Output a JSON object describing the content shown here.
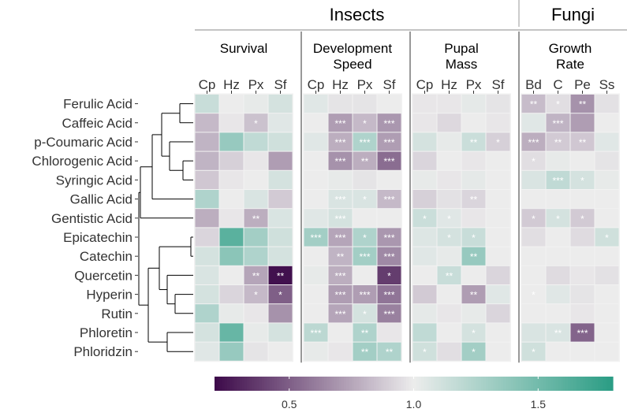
{
  "chart_data": {
    "type": "heatmap",
    "groups": [
      {
        "label": "Insects",
        "panels": [
          0,
          1,
          2
        ]
      },
      {
        "label": "Fungi",
        "panels": [
          3
        ]
      }
    ],
    "panels": [
      {
        "title_lines": [
          "Survival"
        ],
        "columns": [
          "Cp",
          "Hz",
          "Px",
          "Sf"
        ]
      },
      {
        "title_lines": [
          "Development",
          "Speed"
        ],
        "columns": [
          "Cp",
          "Hz",
          "Px",
          "Sf"
        ]
      },
      {
        "title_lines": [
          "Pupal",
          "Mass"
        ],
        "columns": [
          "Cp",
          "Hz",
          "Px",
          "Sf"
        ]
      },
      {
        "title_lines": [
          "Growth",
          "Rate"
        ],
        "columns": [
          "Bd",
          "C",
          "Pe",
          "Ss"
        ]
      }
    ],
    "rows": [
      "Ferulic Acid",
      "Caffeic Acid",
      "p-Coumaric Acid",
      "Chlorogenic Acid",
      "Syringic Acid",
      "Gallic Acid",
      "Gentistic Acid",
      "Epicatechin",
      "Catechin",
      "Quercetin",
      "Hyperin",
      "Rutin",
      "Phloretin",
      "Phloridzin"
    ],
    "values": [
      [
        [
          1.15,
          1.0,
          1.02,
          1.1
        ],
        [
          1.05,
          0.97,
          0.97,
          1.0
        ],
        [
          0.98,
          0.98,
          1.03,
          0.97
        ],
        [
          0.83,
          0.95,
          0.68,
          0.96
        ]
      ],
      [
        [
          0.82,
          0.98,
          0.85,
          1.05
        ],
        [
          1.0,
          0.72,
          0.82,
          0.7
        ],
        [
          0.98,
          0.93,
          1.0,
          0.98
        ],
        [
          1.05,
          0.8,
          0.72,
          1.0
        ]
      ],
      [
        [
          0.8,
          1.35,
          1.18,
          1.12
        ],
        [
          1.05,
          0.78,
          1.25,
          0.72
        ],
        [
          1.1,
          1.02,
          1.14,
          0.9
        ],
        [
          0.78,
          0.88,
          0.87,
          1.05
        ]
      ],
      [
        [
          0.8,
          0.9,
          0.98,
          0.72
        ],
        [
          1.0,
          0.68,
          0.78,
          0.55
        ],
        [
          0.92,
          1.0,
          0.98,
          1.0
        ],
        [
          0.95,
          1.02,
          1.0,
          0.97
        ]
      ],
      [
        [
          0.87,
          0.98,
          1.0,
          1.1
        ],
        [
          1.0,
          1.02,
          0.97,
          1.0
        ],
        [
          1.02,
          0.98,
          1.03,
          1.0
        ],
        [
          1.08,
          1.18,
          1.1,
          1.02
        ]
      ],
      [
        [
          1.25,
          1.0,
          1.08,
          0.88
        ],
        [
          1.0,
          1.08,
          1.08,
          0.82
        ],
        [
          0.9,
          0.96,
          0.92,
          1.0
        ],
        [
          1.0,
          1.0,
          1.0,
          1.0
        ]
      ],
      [
        [
          0.78,
          0.98,
          0.78,
          1.08
        ],
        [
          1.05,
          1.1,
          1.0,
          1.0
        ],
        [
          1.14,
          1.05,
          0.98,
          1.0
        ],
        [
          0.88,
          1.1,
          0.88,
          1.0
        ]
      ],
      [
        [
          0.92,
          1.6,
          1.3,
          1.12
        ],
        [
          1.3,
          0.75,
          1.25,
          0.7
        ],
        [
          1.06,
          1.1,
          1.15,
          1.0
        ],
        [
          0.95,
          1.0,
          0.94,
          1.12
        ]
      ],
      [
        [
          1.1,
          1.4,
          1.25,
          1.1
        ],
        [
          1.0,
          0.8,
          1.3,
          0.65
        ],
        [
          1.05,
          1.02,
          1.35,
          1.0
        ],
        [
          1.0,
          1.0,
          1.0,
          1.0
        ]
      ],
      [
        [
          1.08,
          1.0,
          0.75,
          0.22
        ],
        [
          1.02,
          0.78,
          1.0,
          0.38
        ],
        [
          1.0,
          1.15,
          1.0,
          0.92
        ],
        [
          1.0,
          0.94,
          0.98,
          0.96
        ]
      ],
      [
        [
          1.1,
          0.92,
          0.82,
          0.5
        ],
        [
          1.0,
          0.72,
          0.72,
          0.58
        ],
        [
          0.88,
          1.0,
          0.72,
          1.05
        ],
        [
          1.0,
          1.05,
          0.97,
          1.0
        ]
      ],
      [
        [
          1.25,
          1.02,
          0.98,
          0.68
        ],
        [
          1.0,
          0.75,
          1.1,
          0.62
        ],
        [
          1.03,
          0.98,
          1.02,
          0.92
        ],
        [
          1.0,
          1.0,
          0.98,
          1.0
        ]
      ],
      [
        [
          1.1,
          1.55,
          1.02,
          1.1
        ],
        [
          1.2,
          1.0,
          1.25,
          0.98
        ],
        [
          1.18,
          1.0,
          1.1,
          1.0
        ],
        [
          1.08,
          1.08,
          0.52,
          1.0
        ]
      ],
      [
        [
          1.05,
          1.35,
          0.97,
          1.0
        ],
        [
          1.02,
          0.98,
          1.3,
          1.25
        ],
        [
          1.12,
          0.95,
          1.3,
          1.0
        ],
        [
          1.12,
          1.0,
          1.0,
          1.0
        ]
      ]
    ],
    "significance": [
      [
        [
          "",
          "",
          "",
          ""
        ],
        [
          "",
          "",
          "",
          ""
        ],
        [
          "",
          "",
          "",
          ""
        ],
        [
          "**",
          "*",
          "**",
          ""
        ]
      ],
      [
        [
          "",
          "",
          "*",
          ""
        ],
        [
          "",
          "***",
          "*",
          "***"
        ],
        [
          "",
          "",
          "",
          ""
        ],
        [
          "",
          "***",
          "",
          ""
        ]
      ],
      [
        [
          "",
          "",
          "",
          ""
        ],
        [
          "",
          "***",
          "***",
          "***"
        ],
        [
          "",
          "",
          "**",
          "*"
        ],
        [
          "***",
          "**",
          "**",
          ""
        ]
      ],
      [
        [
          "",
          "",
          "",
          ""
        ],
        [
          "",
          "***",
          "**",
          "***"
        ],
        [
          "",
          "",
          "",
          ""
        ],
        [
          "*",
          "",
          "",
          ""
        ]
      ],
      [
        [
          "",
          "",
          "",
          ""
        ],
        [
          "",
          "",
          "",
          ""
        ],
        [
          "",
          "",
          "",
          ""
        ],
        [
          "",
          "***",
          "*",
          ""
        ]
      ],
      [
        [
          "",
          "",
          "",
          ""
        ],
        [
          "",
          "***",
          "*",
          "***"
        ],
        [
          "",
          "",
          "**",
          ""
        ],
        [
          "",
          "",
          "",
          ""
        ]
      ],
      [
        [
          "",
          "",
          "**",
          ""
        ],
        [
          "",
          "***",
          "",
          ""
        ],
        [
          "*",
          "*",
          "",
          ""
        ],
        [
          "*",
          "*",
          "*",
          ""
        ]
      ],
      [
        [
          "",
          "",
          "",
          ""
        ],
        [
          "***",
          "***",
          "*",
          "***"
        ],
        [
          "",
          "*",
          "*",
          ""
        ],
        [
          "",
          "",
          "",
          "*"
        ]
      ],
      [
        [
          "",
          "",
          "",
          ""
        ],
        [
          "",
          "**",
          "***",
          "***"
        ],
        [
          "",
          "",
          "**",
          ""
        ],
        [
          "",
          "",
          "",
          ""
        ]
      ],
      [
        [
          "",
          "",
          "**",
          "**"
        ],
        [
          "",
          "***",
          "",
          "*"
        ],
        [
          "",
          "**",
          "",
          ""
        ],
        [
          "",
          "",
          "",
          ""
        ]
      ],
      [
        [
          "",
          "",
          "*",
          "*"
        ],
        [
          "",
          "***",
          "***",
          "***"
        ],
        [
          "",
          "",
          "**",
          ""
        ],
        [
          "*",
          "",
          "",
          ""
        ]
      ],
      [
        [
          "",
          "",
          "",
          ""
        ],
        [
          "",
          "***",
          "*",
          "***"
        ],
        [
          "",
          "",
          "",
          ""
        ],
        [
          "",
          "",
          "",
          ""
        ]
      ],
      [
        [
          "",
          "",
          "",
          ""
        ],
        [
          "***",
          "",
          "**",
          ""
        ],
        [
          "",
          "",
          "*",
          ""
        ],
        [
          "",
          "**",
          "***",
          ""
        ]
      ],
      [
        [
          "",
          "",
          "",
          ""
        ],
        [
          "",
          "",
          "**",
          "**"
        ],
        [
          "*",
          "",
          "*",
          ""
        ],
        [
          "*",
          "",
          "",
          ""
        ]
      ]
    ],
    "color_scale": {
      "low": 0.2,
      "mid": 1.0,
      "high": 1.8,
      "low_color": "#3d0a4a",
      "mid_color": "#ececec",
      "high_color": "#2a9d84",
      "ticks": [
        0.5,
        1.0,
        1.5
      ],
      "tick_labels": [
        "0.5",
        "1.0",
        "1.5"
      ]
    }
  }
}
